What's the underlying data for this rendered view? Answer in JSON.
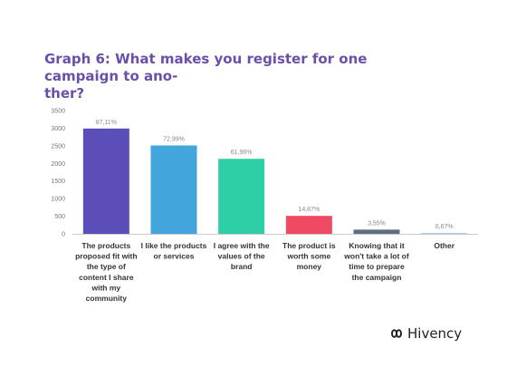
{
  "chart_data": {
    "type": "bar",
    "title": "Graph 6: What makes you register for one campaign to ano-ther?",
    "title_lines": [
      "Graph 6: What makes you register for one campaign to ano-",
      "ther?"
    ],
    "categories": [
      "The products proposed fit with the type of content I share with my community",
      "I like the products or services",
      "I agree with the values of the brand",
      "The product is worth some money",
      "Knowing that it won't take a lot of time to prepare the campaign",
      "Other"
    ],
    "category_lines": [
      [
        "The products",
        "proposed fit with",
        "the type of",
        "content I share",
        "with my",
        "community"
      ],
      [
        "I like the products",
        "or services"
      ],
      [
        "I agree with the",
        "values of the",
        "brand"
      ],
      [
        "The product is",
        "worth some",
        "money"
      ],
      [
        "Knowing that it",
        "won't take a lot of",
        "time to prepare",
        "the campaign"
      ],
      [
        "Other"
      ]
    ],
    "values": [
      2990,
      2510,
      2130,
      510,
      120,
      23
    ],
    "data_labels": [
      "87,11%",
      "72,99%",
      "61,96%",
      "14,87%",
      "3,55%",
      "0,67%"
    ],
    "colors": [
      "#5b4eb8",
      "#42a6dc",
      "#2ecfa6",
      "#ef4a63",
      "#606f80",
      "#9cc8e8"
    ],
    "yticks": [
      0,
      500,
      1000,
      1500,
      2000,
      2500,
      3000,
      3500
    ],
    "ylim": [
      0,
      3500
    ],
    "grid": false,
    "legend": "none",
    "xlabel": "",
    "ylabel": ""
  },
  "brand": {
    "name": "Hivency",
    "icon": "hivency-logo-icon"
  }
}
